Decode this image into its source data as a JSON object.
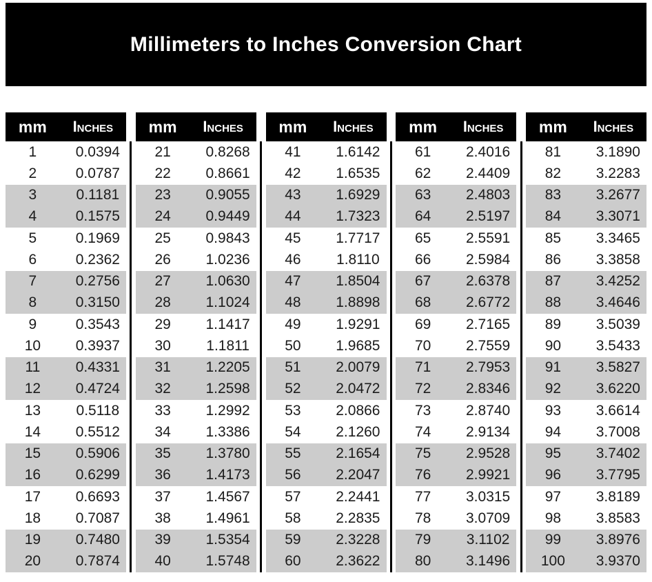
{
  "title": "Millimeters to Inches Conversion Chart",
  "colors": {
    "banner_bg": "#000000",
    "banner_text": "#ffffff",
    "header_bg": "#000000",
    "header_text": "#ffffff",
    "stripe": "#cccccc",
    "text": "#1b1b1b",
    "ink": "#000000",
    "page_bg": "#ffffff"
  },
  "table": {
    "header_mm": "mm",
    "header_inches": "Inches",
    "columns": [
      {
        "rows": [
          [
            "1",
            "0.0394"
          ],
          [
            "2",
            "0.0787"
          ],
          [
            "3",
            "0.1181"
          ],
          [
            "4",
            "0.1575"
          ],
          [
            "5",
            "0.1969"
          ],
          [
            "6",
            "0.2362"
          ],
          [
            "7",
            "0.2756"
          ],
          [
            "8",
            "0.3150"
          ],
          [
            "9",
            "0.3543"
          ],
          [
            "10",
            "0.3937"
          ],
          [
            "11",
            "0.4331"
          ],
          [
            "12",
            "0.4724"
          ],
          [
            "13",
            "0.5118"
          ],
          [
            "14",
            "0.5512"
          ],
          [
            "15",
            "0.5906"
          ],
          [
            "16",
            "0.6299"
          ],
          [
            "17",
            "0.6693"
          ],
          [
            "18",
            "0.7087"
          ],
          [
            "19",
            "0.7480"
          ],
          [
            "20",
            "0.7874"
          ]
        ]
      },
      {
        "rows": [
          [
            "21",
            "0.8268"
          ],
          [
            "22",
            "0.8661"
          ],
          [
            "23",
            "0.9055"
          ],
          [
            "24",
            "0.9449"
          ],
          [
            "25",
            "0.9843"
          ],
          [
            "26",
            "1.0236"
          ],
          [
            "27",
            "1.0630"
          ],
          [
            "28",
            "1.1024"
          ],
          [
            "29",
            "1.1417"
          ],
          [
            "30",
            "1.1811"
          ],
          [
            "31",
            "1.2205"
          ],
          [
            "32",
            "1.2598"
          ],
          [
            "33",
            "1.2992"
          ],
          [
            "34",
            "1.3386"
          ],
          [
            "35",
            "1.3780"
          ],
          [
            "36",
            "1.4173"
          ],
          [
            "37",
            "1.4567"
          ],
          [
            "38",
            "1.4961"
          ],
          [
            "39",
            "1.5354"
          ],
          [
            "40",
            "1.5748"
          ]
        ]
      },
      {
        "rows": [
          [
            "41",
            "1.6142"
          ],
          [
            "42",
            "1.6535"
          ],
          [
            "43",
            "1.6929"
          ],
          [
            "44",
            "1.7323"
          ],
          [
            "45",
            "1.7717"
          ],
          [
            "46",
            "1.8110"
          ],
          [
            "47",
            "1.8504"
          ],
          [
            "48",
            "1.8898"
          ],
          [
            "49",
            "1.9291"
          ],
          [
            "50",
            "1.9685"
          ],
          [
            "51",
            "2.0079"
          ],
          [
            "52",
            "2.0472"
          ],
          [
            "53",
            "2.0866"
          ],
          [
            "54",
            "2.1260"
          ],
          [
            "55",
            "2.1654"
          ],
          [
            "56",
            "2.2047"
          ],
          [
            "57",
            "2.2441"
          ],
          [
            "58",
            "2.2835"
          ],
          [
            "59",
            "2.3228"
          ],
          [
            "60",
            "2.3622"
          ]
        ]
      },
      {
        "rows": [
          [
            "61",
            "2.4016"
          ],
          [
            "62",
            "2.4409"
          ],
          [
            "63",
            "2.4803"
          ],
          [
            "64",
            "2.5197"
          ],
          [
            "65",
            "2.5591"
          ],
          [
            "66",
            "2.5984"
          ],
          [
            "67",
            "2.6378"
          ],
          [
            "68",
            "2.6772"
          ],
          [
            "69",
            "2.7165"
          ],
          [
            "70",
            "2.7559"
          ],
          [
            "71",
            "2.7953"
          ],
          [
            "72",
            "2.8346"
          ],
          [
            "73",
            "2.8740"
          ],
          [
            "74",
            "2.9134"
          ],
          [
            "75",
            "2.9528"
          ],
          [
            "76",
            "2.9921"
          ],
          [
            "77",
            "3.0315"
          ],
          [
            "78",
            "3.0709"
          ],
          [
            "79",
            "3.1102"
          ],
          [
            "80",
            "3.1496"
          ]
        ]
      },
      {
        "rows": [
          [
            "81",
            "3.1890"
          ],
          [
            "82",
            "3.2283"
          ],
          [
            "83",
            "3.2677"
          ],
          [
            "84",
            "3.3071"
          ],
          [
            "85",
            "3.3465"
          ],
          [
            "86",
            "3.3858"
          ],
          [
            "87",
            "3.4252"
          ],
          [
            "88",
            "3.4646"
          ],
          [
            "89",
            "3.5039"
          ],
          [
            "90",
            "3.5433"
          ],
          [
            "91",
            "3.5827"
          ],
          [
            "92",
            "3.6220"
          ],
          [
            "93",
            "3.6614"
          ],
          [
            "94",
            "3.7008"
          ],
          [
            "95",
            "3.7402"
          ],
          [
            "96",
            "3.7795"
          ],
          [
            "97",
            "3.8189"
          ],
          [
            "98",
            "3.8583"
          ],
          [
            "99",
            "3.8976"
          ],
          [
            "100",
            "3.9370"
          ]
        ]
      }
    ]
  }
}
